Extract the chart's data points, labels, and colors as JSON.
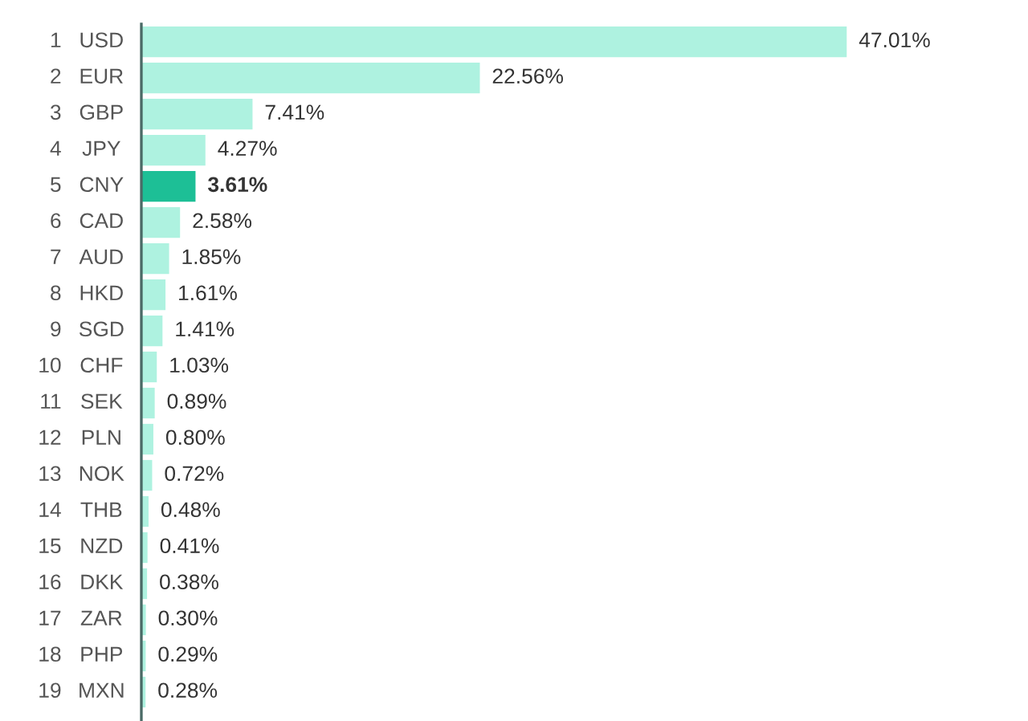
{
  "chart_data": {
    "type": "bar",
    "orientation": "horizontal",
    "categories": [
      "1 USD",
      "2 EUR",
      "3 GBP",
      "4 JPY",
      "5 CNY",
      "6 CAD",
      "7 AUD",
      "8 HKD",
      "9 SGD",
      "10 CHF",
      "11 SEK",
      "12 PLN",
      "13 NOK",
      "14 THB",
      "15 NZD",
      "16 DKK",
      "17 ZAR",
      "18 PHP",
      "19 MXN"
    ],
    "values": [
      47.01,
      22.56,
      7.41,
      4.27,
      3.61,
      2.58,
      1.85,
      1.61,
      1.41,
      1.03,
      0.89,
      0.8,
      0.72,
      0.48,
      0.41,
      0.38,
      0.3,
      0.29,
      0.28
    ],
    "value_labels": [
      "47.01%",
      "22.56%",
      "7.41%",
      "4.27%",
      "3.61%",
      "2.58%",
      "1.85%",
      "1.61%",
      "1.41%",
      "1.03%",
      "0.89%",
      "0.80%",
      "0.72%",
      "0.48%",
      "0.41%",
      "0.38%",
      "0.30%",
      "0.29%",
      "0.28%"
    ],
    "colors": [
      "#aef2e0",
      "#aef2e0",
      "#aef2e0",
      "#aef2e0",
      "#1dbf96",
      "#aef2e0",
      "#aef2e0",
      "#aef2e0",
      "#aef2e0",
      "#aef2e0",
      "#aef2e0",
      "#aef2e0",
      "#aef2e0",
      "#aef2e0",
      "#aef2e0",
      "#aef2e0",
      "#aef2e0",
      "#aef2e0",
      "#aef2e0"
    ]
  }
}
